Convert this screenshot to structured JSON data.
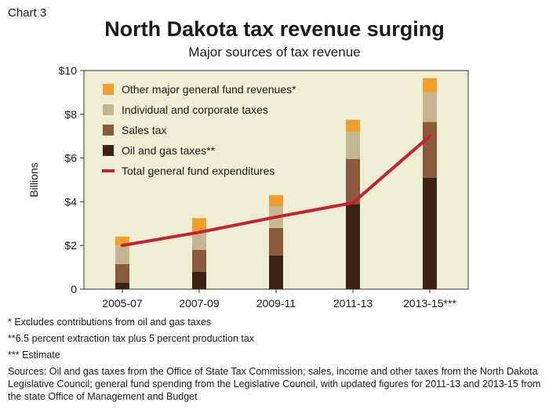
{
  "header": {
    "chart_label": "Chart 3",
    "title": "North Dakota tax revenue surging",
    "subtitle": "Major sources of tax revenue"
  },
  "colors": {
    "plot_bg": "#eeeed5",
    "oil_gas": "#3b2413",
    "sales": "#8b5a3c",
    "individual_corporate": "#c4b691",
    "other": "#f0a028",
    "expenditures": "#c8202f"
  },
  "chart_data": {
    "type": "bar",
    "stacked": true,
    "title": "North Dakota tax revenue surging",
    "subtitle": "Major sources of tax revenue",
    "xlabel": "",
    "ylabel": "Billions",
    "ylim": [
      0,
      10
    ],
    "yticks": [
      0,
      2,
      4,
      6,
      8,
      10
    ],
    "ytick_labels": [
      "0",
      "$2",
      "$4",
      "$6",
      "$8",
      "$10"
    ],
    "grid": false,
    "legend_position": "top-left",
    "categories": [
      "2005-07",
      "2007-09",
      "2009-11",
      "2011-13",
      "2013-15***"
    ],
    "series": [
      {
        "name": "Oil and gas taxes**",
        "color": "#3b2413",
        "values": [
          0.3,
          0.8,
          1.55,
          3.9,
          5.1
        ]
      },
      {
        "name": "Sales tax",
        "color": "#8b5a3c",
        "values": [
          0.85,
          1.0,
          1.25,
          2.05,
          2.55
        ]
      },
      {
        "name": "Individual and corporate taxes",
        "color": "#c4b691",
        "values": [
          0.85,
          0.8,
          1.0,
          1.25,
          1.35
        ]
      },
      {
        "name": "Other major general fund revenues*",
        "color": "#f0a028",
        "values": [
          0.4,
          0.65,
          0.5,
          0.55,
          0.65
        ]
      }
    ],
    "line_series": {
      "name": "Total general fund expenditures",
      "color": "#c8202f",
      "values": [
        2.0,
        2.6,
        3.3,
        3.95,
        7.0
      ]
    },
    "legend_order": [
      "Other major general fund revenues*",
      "Individual and corporate taxes",
      "Sales tax",
      "Oil and gas taxes**",
      "Total general fund expenditures"
    ]
  },
  "footnotes": {
    "note1": "* Excludes contributions from oil and gas taxes",
    "note2": "**6.5 percent extraction tax plus 5 percent production tax",
    "note3": "*** Estimate",
    "sources": "Sources: Oil and gas taxes from the Office of State Tax Commission; sales, income and other taxes from the North Dakota Legislative Council; general fund spending from the Legislative Council, with updated figures for 2011-13 and 2013-15 from the state Office of Management and Budget"
  }
}
